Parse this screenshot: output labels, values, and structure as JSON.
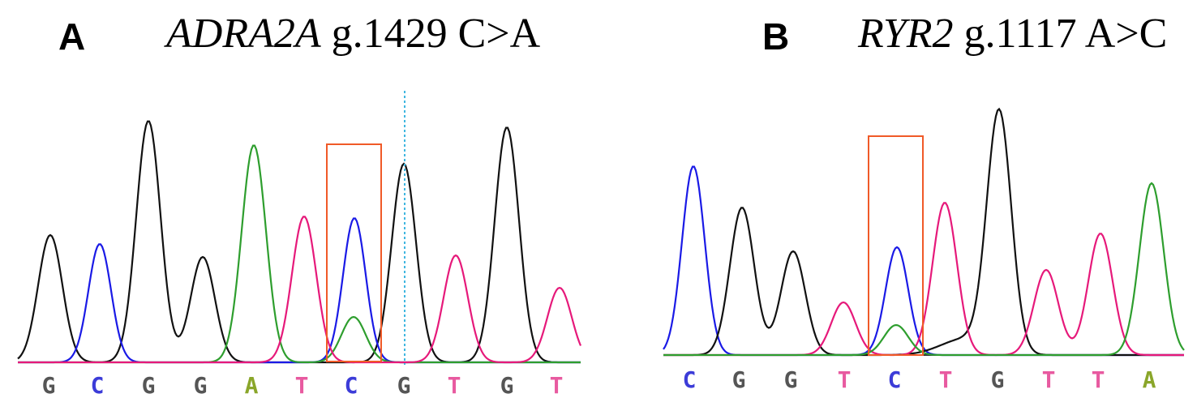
{
  "panels": [
    {
      "letter": "A",
      "gene": "ADRA2A",
      "variant": "g.1429 C>A",
      "bases": [
        "G",
        "C",
        "G",
        "G",
        "A",
        "T",
        "C",
        "G",
        "T",
        "G",
        "T"
      ]
    },
    {
      "letter": "B",
      "gene": "RYR2",
      "variant": "g.1117 A>C",
      "bases": [
        "C",
        "G",
        "G",
        "T",
        "C",
        "T",
        "G",
        "T",
        "T",
        "A"
      ]
    }
  ],
  "colors": {
    "A": "#2e9e2e",
    "C": "#1a1ae6",
    "G": "#111111",
    "T": "#e6197a",
    "highlight_box": "#f05a28",
    "cursor_line": "#3fb6e0",
    "label_A": "#8aa62a",
    "label_C": "#3c3cd8",
    "label_G": "#555555",
    "label_T": "#e85aa0"
  }
}
